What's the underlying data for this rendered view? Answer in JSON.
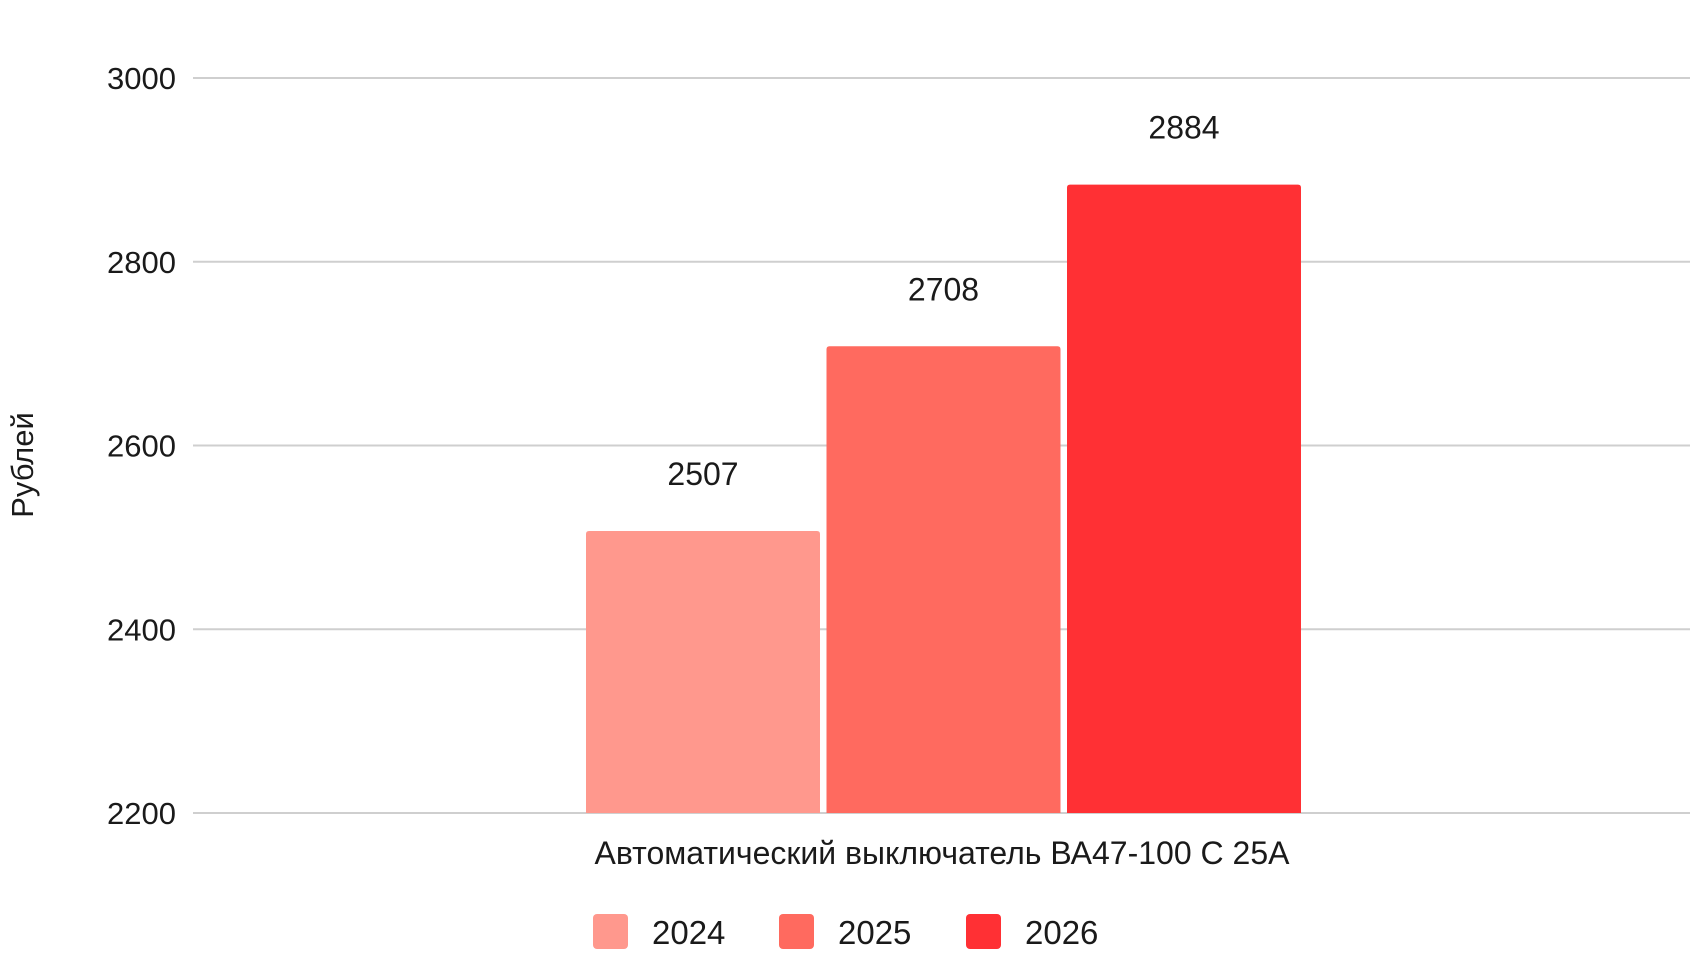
{
  "chart_data": {
    "type": "bar",
    "title": "",
    "xlabel": "",
    "ylabel": "Рублей",
    "categories": [
      "Автоматический выключатель ВА47-100 С 25А"
    ],
    "series": [
      {
        "name": "2024",
        "values": [
          2507
        ],
        "color": "#ff988d"
      },
      {
        "name": "2025",
        "values": [
          2708
        ],
        "color": "#ff6a5f"
      },
      {
        "name": "2026",
        "values": [
          2884
        ],
        "color": "#ff3034"
      }
    ],
    "ylim": [
      2200,
      3000
    ],
    "yticks": [
      "2200",
      "2400",
      "2600",
      "2800",
      "3000"
    ],
    "data_labels": [
      "2507",
      "2708",
      "2884"
    ],
    "grid": true,
    "legend": "bottom"
  }
}
